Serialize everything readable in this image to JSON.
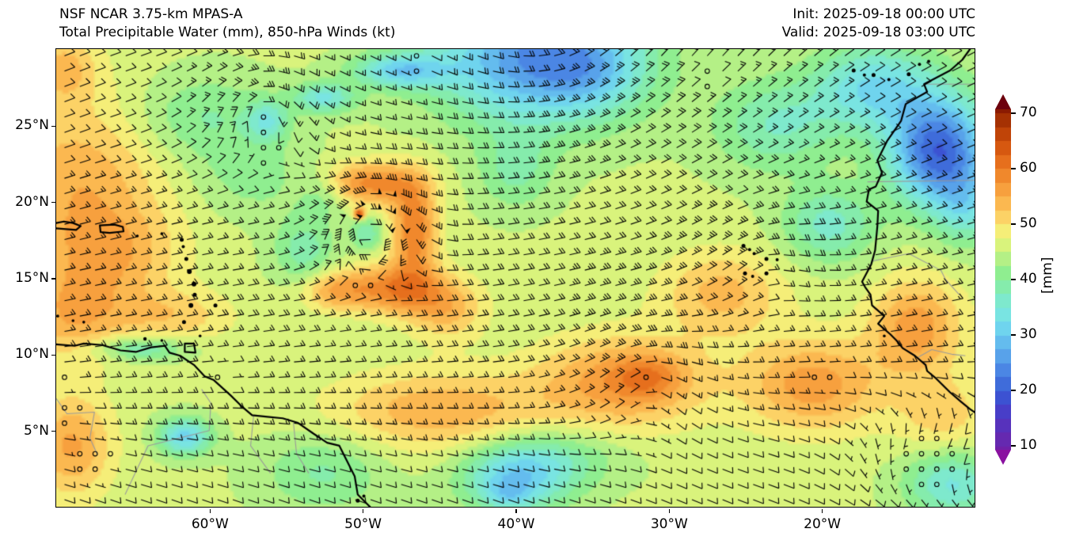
{
  "header": {
    "title_line1": "NSF NCAR 3.75-km MPAS-A",
    "title_line2": "Total Precipitable Water (mm), 850-hPa Winds (kt)",
    "init_label": "Init: 2025-09-18 00:00 UTC",
    "valid_label": "Valid: 2025-09-18 03:00 UTC"
  },
  "chart_data": {
    "type": "heatmap",
    "title": "Total Precipitable Water (mm), 850-hPa Winds (kt)",
    "field_units": "mm",
    "wind_units": "kt",
    "extent": {
      "lon_min": -70,
      "lon_max": -10,
      "lat_min": 0,
      "lat_max": 30
    },
    "x_axis": {
      "ticks": [
        {
          "lon": -60,
          "label": "60°W"
        },
        {
          "lon": -50,
          "label": "50°W"
        },
        {
          "lon": -40,
          "label": "40°W"
        },
        {
          "lon": -30,
          "label": "30°W"
        },
        {
          "lon": -20,
          "label": "20°W"
        }
      ]
    },
    "y_axis": {
      "ticks": [
        {
          "lat": 5,
          "label": "5°N"
        },
        {
          "lat": 10,
          "label": "10°N"
        },
        {
          "lat": 15,
          "label": "15°N"
        },
        {
          "lat": 20,
          "label": "20°N"
        },
        {
          "lat": 25,
          "label": "25°N"
        }
      ]
    },
    "colorbar": {
      "label": "[mm]",
      "tick_values": [
        10,
        20,
        30,
        40,
        50,
        60,
        70
      ],
      "value_top": 70.71,
      "value_bottom": 9.29,
      "level_step": 2.5,
      "over_color": "#6d000d",
      "under_color": "#8a11a0"
    },
    "colormap": [
      [
        6.25,
        "#7c14a2"
      ],
      [
        8.75,
        "#7020a8"
      ],
      [
        11.25,
        "#6529b0"
      ],
      [
        13.75,
        "#5732bc"
      ],
      [
        16.25,
        "#483ec8"
      ],
      [
        18.75,
        "#3c52d2"
      ],
      [
        21.25,
        "#3f6cda"
      ],
      [
        23.75,
        "#4b86e4"
      ],
      [
        26.25,
        "#58a2ea"
      ],
      [
        28.75,
        "#64bcee"
      ],
      [
        31.25,
        "#6fd4ee"
      ],
      [
        33.75,
        "#79e4e2"
      ],
      [
        36.25,
        "#7ee9cd"
      ],
      [
        38.75,
        "#85ecac"
      ],
      [
        41.25,
        "#8fee90"
      ],
      [
        43.75,
        "#b4f086"
      ],
      [
        46.25,
        "#d9f37c"
      ],
      [
        48.75,
        "#f5ee78"
      ],
      [
        51.25,
        "#fcd266"
      ],
      [
        53.75,
        "#fbb850"
      ],
      [
        56.25,
        "#f7a03e"
      ],
      [
        58.75,
        "#f0882c"
      ],
      [
        61.25,
        "#e66f1d"
      ],
      [
        63.75,
        "#d65810"
      ],
      [
        66.25,
        "#c04408"
      ],
      [
        68.75,
        "#a53103"
      ],
      [
        71.25,
        "#8a1a02"
      ]
    ],
    "field_background": 45.5,
    "field_blobs": [
      [
        -68.5,
        21.0,
        5.5,
        6.0,
        9
      ],
      [
        -69.0,
        12.5,
        3.5,
        3.0,
        8
      ],
      [
        -66.0,
        16.5,
        4.0,
        3.0,
        6
      ],
      [
        -50.2,
        19.2,
        0.35,
        0.35,
        20
      ],
      [
        -49.7,
        17.9,
        1.05,
        1.05,
        -8
      ],
      [
        -49.5,
        21.2,
        3.2,
        1.4,
        13
      ],
      [
        -46.6,
        18.2,
        1.5,
        3.2,
        14
      ],
      [
        -47.8,
        14.3,
        3.0,
        1.6,
        13
      ],
      [
        -51.8,
        14.2,
        2.2,
        1.3,
        9
      ],
      [
        -44.5,
        13.0,
        2.5,
        2.0,
        8
      ],
      [
        -53.8,
        16.8,
        2.0,
        2.2,
        -7
      ],
      [
        -52.5,
        20.5,
        1.5,
        1.5,
        -5
      ],
      [
        -38.5,
        29.5,
        6.5,
        4.2,
        -21
      ],
      [
        -35.0,
        28.5,
        3.2,
        2.6,
        -5
      ],
      [
        -40.0,
        22.0,
        2.5,
        2.5,
        -6
      ],
      [
        -47.5,
        28.6,
        3.0,
        1.1,
        -13
      ],
      [
        -52.5,
        26.8,
        2.0,
        1.0,
        -11
      ],
      [
        -56.2,
        25.3,
        1.3,
        1.3,
        -9
      ],
      [
        -60.5,
        25.5,
        4.5,
        2.8,
        -6
      ],
      [
        -57.0,
        21.5,
        4.0,
        2.5,
        -4
      ],
      [
        -12.3,
        23.3,
        3.2,
        3.5,
        -25
      ],
      [
        -10.5,
        19.5,
        2.0,
        2.5,
        -8
      ],
      [
        -16.5,
        27.5,
        4.0,
        2.8,
        -13
      ],
      [
        -23.0,
        25.0,
        4.0,
        3.0,
        -8
      ],
      [
        -19.5,
        18.5,
        3.0,
        2.5,
        -9
      ],
      [
        -45.0,
        6.3,
        7.0,
        2.6,
        9
      ],
      [
        -33.0,
        8.2,
        5.5,
        3.0,
        11
      ],
      [
        -31.3,
        8.5,
        2.2,
        1.4,
        6
      ],
      [
        -20.5,
        8.0,
        4.5,
        3.0,
        11
      ],
      [
        -13.8,
        11.8,
        3.0,
        3.2,
        11
      ],
      [
        -12.0,
        6.0,
        3.0,
        2.5,
        6
      ],
      [
        -69.0,
        4.0,
        2.6,
        3.4,
        10
      ],
      [
        -62.5,
        12.5,
        4.0,
        1.8,
        6
      ],
      [
        -40.0,
        1.8,
        3.5,
        2.2,
        -13
      ],
      [
        -40.5,
        0.8,
        1.5,
        1.0,
        -5
      ],
      [
        -37.5,
        3.3,
        4.5,
        2.0,
        -6
      ],
      [
        -52.5,
        2.3,
        4.0,
        2.6,
        -6
      ],
      [
        -61.6,
        4.6,
        1.7,
        1.2,
        -14
      ],
      [
        -64.5,
        10.4,
        3.0,
        0.8,
        -9
      ],
      [
        -11.5,
        1.5,
        3.0,
        2.2,
        -11
      ],
      [
        -26.5,
        14.0,
        4.0,
        2.8,
        8
      ],
      [
        -69.5,
        28.8,
        2.2,
        2.2,
        7
      ]
    ],
    "wind": {
      "barb_spacing_px": 19.33,
      "base": {
        "u_mean": -9,
        "u_trade_amp": -8,
        "trade_lat": 13,
        "trade_width": 9,
        "v_itcz_amp": -4,
        "itcz_lat": 7,
        "itcz_width": 5,
        "monsoon": {
          "lon": -12,
          "lat": 4.5,
          "u": 16,
          "v": 7
        }
      },
      "vortices": [
        {
          "lon": -49.5,
          "lat": 18.1,
          "vmax": 55,
          "R": 1.4,
          "s": 1
        },
        {
          "lon": -56.5,
          "lat": 26.0,
          "vmax": 16,
          "R": 2.0,
          "s": 1
        },
        {
          "lon": -31.5,
          "lat": 8.6,
          "vmax": 10,
          "R": 2.5,
          "s": 1
        },
        {
          "lon": -24.0,
          "lat": 16.0,
          "vmax": 8,
          "R": 2.5,
          "s": 1
        },
        {
          "lon": -38.0,
          "lat": 33.0,
          "vmax": 14,
          "R": 7.0,
          "s": -1
        }
      ],
      "calm_zones": [
        [
          -49.5,
          18.05,
          0.55
        ],
        [
          -31.6,
          8.7,
          0.9
        ],
        [
          -46.5,
          28.9,
          1.1
        ],
        [
          -27.6,
          28.0,
          1.1
        ],
        [
          -59.3,
          8.4,
          1.2
        ],
        [
          -69.3,
          6.3,
          1.4
        ],
        [
          -67.6,
          3.2,
          1.6
        ],
        [
          -20.0,
          8.8,
          1.2
        ],
        [
          -13.0,
          3.2,
          1.8
        ],
        [
          -50.3,
          14.9,
          0.5
        ],
        [
          -69.8,
          8.6,
          0.9
        ],
        [
          -25.4,
          20.0,
          0.5
        ]
      ]
    },
    "coastlines": {
      "africa": [
        [
          -10.3,
          30
        ],
        [
          -10.8,
          29.3
        ],
        [
          -11.6,
          28.6
        ],
        [
          -13.3,
          27.7
        ],
        [
          -13.1,
          27.2
        ],
        [
          -14.5,
          26.4
        ],
        [
          -14.8,
          25.3
        ],
        [
          -15.7,
          24.0
        ],
        [
          -16.1,
          23.2
        ],
        [
          -16.35,
          22.7
        ],
        [
          -16.05,
          21.9
        ],
        [
          -16.45,
          21.0
        ],
        [
          -16.9,
          20.8
        ],
        [
          -17.05,
          20.0
        ],
        [
          -16.3,
          19.4
        ],
        [
          -16.35,
          18.4
        ],
        [
          -16.5,
          16.8
        ],
        [
          -16.75,
          15.9
        ],
        [
          -17.35,
          14.75
        ],
        [
          -17.15,
          14.4
        ],
        [
          -16.8,
          13.9
        ],
        [
          -16.7,
          13.2
        ],
        [
          -15.9,
          12.5
        ],
        [
          -16.3,
          12.0
        ],
        [
          -15.5,
          11.3
        ],
        [
          -15.1,
          10.9
        ],
        [
          -14.7,
          10.4
        ],
        [
          -13.9,
          9.9
        ],
        [
          -13.2,
          9.3
        ],
        [
          -13.1,
          8.9
        ],
        [
          -12.5,
          8.4
        ],
        [
          -11.6,
          7.5
        ],
        [
          -10.9,
          6.9
        ],
        [
          -10.3,
          6.4
        ],
        [
          -10.0,
          6.2
        ]
      ],
      "south_america": [
        [
          -70,
          10.65
        ],
        [
          -68.8,
          10.55
        ],
        [
          -68.2,
          10.7
        ],
        [
          -67.0,
          10.6
        ],
        [
          -65.8,
          10.25
        ],
        [
          -64.8,
          10.15
        ],
        [
          -63.8,
          10.45
        ],
        [
          -62.9,
          10.55
        ],
        [
          -62.6,
          10.1
        ],
        [
          -61.9,
          9.9
        ],
        [
          -61.0,
          9.3
        ],
        [
          -60.3,
          8.55
        ],
        [
          -59.7,
          8.3
        ],
        [
          -58.6,
          7.3
        ],
        [
          -57.9,
          6.6
        ],
        [
          -57.2,
          6.0
        ],
        [
          -56.2,
          5.9
        ],
        [
          -55.2,
          5.8
        ],
        [
          -54.2,
          5.5
        ],
        [
          -53.2,
          4.8
        ],
        [
          -52.3,
          4.2
        ],
        [
          -51.5,
          4.0
        ],
        [
          -51.0,
          3.0
        ],
        [
          -50.5,
          2.0
        ],
        [
          -50.3,
          0.8
        ],
        [
          -49.8,
          0.3
        ],
        [
          -49.5,
          0.0
        ]
      ],
      "hispaniola": [
        [
          -70,
          18.6
        ],
        [
          -69.5,
          18.7
        ],
        [
          -68.9,
          18.6
        ],
        [
          -68.4,
          18.4
        ],
        [
          -68.7,
          18.15
        ],
        [
          -70,
          18.25
        ]
      ],
      "puerto_rico": [
        [
          -67.15,
          18.45
        ],
        [
          -66.2,
          18.5
        ],
        [
          -65.65,
          18.35
        ],
        [
          -65.6,
          18.05
        ],
        [
          -66.5,
          17.95
        ],
        [
          -67.1,
          18.0
        ],
        [
          -67.15,
          18.45
        ]
      ],
      "trinidad": [
        [
          -61.6,
          10.7
        ],
        [
          -61.0,
          10.7
        ],
        [
          -60.9,
          10.1
        ],
        [
          -61.6,
          10.15
        ],
        [
          -61.6,
          10.7
        ]
      ]
    },
    "islands": [
      [
        -61.8,
        17.5,
        2.5
      ],
      [
        -61.7,
        17.05,
        2
      ],
      [
        -61.5,
        16.25,
        2.5
      ],
      [
        -61.3,
        15.42,
        3
      ],
      [
        -61.0,
        14.6,
        3
      ],
      [
        -60.95,
        13.9,
        2.5
      ],
      [
        -61.2,
        13.2,
        3
      ],
      [
        -61.65,
        12.1,
        2.5
      ],
      [
        -59.6,
        13.2,
        2.5
      ],
      [
        -64.7,
        17.75,
        1.8
      ],
      [
        -63.1,
        17.9,
        1.8
      ],
      [
        -69.9,
        12.5,
        1.8
      ],
      [
        -68.9,
        12.2,
        1.8
      ],
      [
        -68.2,
        12.1,
        1.8
      ],
      [
        -64.2,
        11.0,
        2.2
      ],
      [
        -63.1,
        10.9,
        1.8
      ],
      [
        -60.6,
        11.2,
        1.8
      ],
      [
        -17.9,
        28.6,
        2.5
      ],
      [
        -17.2,
        28.3,
        2
      ],
      [
        -16.6,
        28.3,
        2.5
      ],
      [
        -15.6,
        28.0,
        2
      ],
      [
        -14.3,
        28.35,
        2.5
      ],
      [
        -13.6,
        29.0,
        2
      ],
      [
        -13.0,
        29.2,
        2
      ],
      [
        -25.1,
        17.1,
        2.5
      ],
      [
        -24.7,
        16.85,
        2
      ],
      [
        -24.4,
        16.6,
        2
      ],
      [
        -23.6,
        16.25,
        2.5
      ],
      [
        -22.9,
        16.2,
        2
      ],
      [
        -25.0,
        15.3,
        2.5
      ],
      [
        -24.5,
        15.1,
        2
      ],
      [
        -23.6,
        15.3,
        2.5
      ],
      [
        -15.9,
        11.2,
        1.8
      ],
      [
        -50.3,
        0.4,
        2.5
      ],
      [
        -49.9,
        0.7,
        2
      ]
    ],
    "borders": [
      [
        [
          -13.2,
          27.7
        ],
        [
          -10,
          27.7
        ]
      ],
      [
        [
          -17.0,
          21.3
        ],
        [
          -10,
          21.4
        ]
      ],
      [
        [
          -16.7,
          16.1
        ],
        [
          -14.3,
          16.6
        ],
        [
          -12.2,
          15.5
        ],
        [
          -11.9,
          14.9
        ],
        [
          -11.0,
          13.9
        ]
      ],
      [
        [
          -13.7,
          9.8
        ],
        [
          -12.8,
          10.3
        ],
        [
          -11.5,
          10.0
        ],
        [
          -10.6,
          9.9
        ]
      ],
      [
        [
          -70,
          7.1
        ],
        [
          -69.3,
          6.1
        ],
        [
          -67.5,
          6.2
        ],
        [
          -67.8,
          4.5
        ],
        [
          -67.3,
          3.4
        ]
      ],
      [
        [
          -65.5,
          0.8
        ],
        [
          -64.0,
          4.0
        ],
        [
          -60.0,
          5.0
        ],
        [
          -59.9,
          6.8
        ],
        [
          -60.5,
          7.7
        ]
      ],
      [
        [
          -57.1,
          6.0
        ],
        [
          -57.3,
          4.0
        ],
        [
          -56.0,
          2.2
        ]
      ],
      [
        [
          -54.5,
          5.5
        ],
        [
          -54.3,
          3.5
        ],
        [
          -53.5,
          2.2
        ]
      ]
    ]
  }
}
